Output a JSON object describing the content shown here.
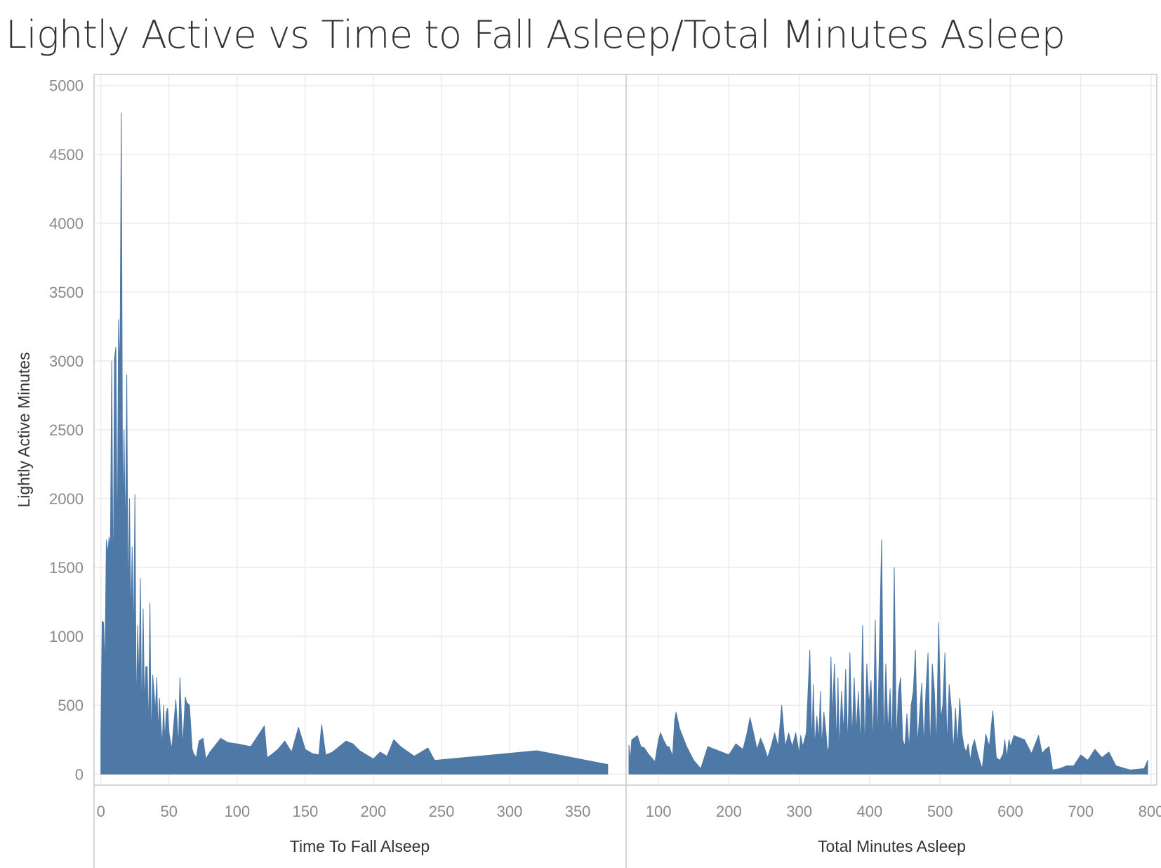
{
  "title": "Lightly Active vs Time to Fall Asleep/Total Minutes Asleep",
  "colors": {
    "area": "#4e79a7",
    "grid": "#ececec",
    "axis": "#c8c8c8",
    "tick_text": "#8a8a8a",
    "title_text": "#333333"
  },
  "chart_data": [
    {
      "type": "area",
      "xlabel": "Time To Fall Alseep",
      "ylabel": "Lightly Active Minutes",
      "xlim": [
        -5,
        385
      ],
      "ylim": [
        -80,
        5080
      ],
      "xticks": [
        0,
        50,
        100,
        150,
        200,
        250,
        300,
        350
      ],
      "yticks": [
        0,
        500,
        1000,
        1500,
        2000,
        2500,
        3000,
        3500,
        4000,
        4500,
        5000
      ],
      "grid": true,
      "x": [
        0,
        1,
        2,
        3,
        4,
        5,
        6,
        7,
        8,
        9,
        10,
        11,
        12,
        13,
        14,
        15,
        16,
        17,
        18,
        19,
        20,
        21,
        22,
        23,
        24,
        25,
        26,
        27,
        28,
        29,
        30,
        31,
        32,
        33,
        34,
        35,
        36,
        37,
        38,
        39,
        40,
        41,
        42,
        43,
        44,
        45,
        46,
        47,
        48,
        49,
        50,
        52,
        55,
        57,
        58,
        60,
        62,
        63,
        65,
        67,
        68,
        70,
        72,
        75,
        77,
        80,
        88,
        93,
        100,
        110,
        120,
        122,
        125,
        130,
        135,
        140,
        145,
        150,
        155,
        160,
        162,
        165,
        170,
        180,
        185,
        190,
        195,
        200,
        205,
        210,
        215,
        220,
        230,
        240,
        245,
        320,
        372
      ],
      "y": [
        270,
        1110,
        1100,
        750,
        1700,
        1600,
        1720,
        1650,
        3000,
        1200,
        3020,
        3100,
        1500,
        3300,
        2900,
        4800,
        1800,
        2500,
        1650,
        2900,
        1200,
        2000,
        1100,
        1650,
        950,
        2030,
        400,
        1080,
        650,
        1420,
        350,
        1200,
        500,
        780,
        780,
        300,
        1240,
        200,
        720,
        600,
        450,
        700,
        300,
        550,
        380,
        200,
        500,
        250,
        450,
        480,
        300,
        180,
        540,
        200,
        700,
        200,
        560,
        520,
        500,
        180,
        150,
        120,
        240,
        260,
        110,
        160,
        260,
        230,
        220,
        200,
        350,
        120,
        140,
        180,
        240,
        160,
        340,
        180,
        150,
        140,
        360,
        140,
        160,
        240,
        220,
        170,
        140,
        110,
        160,
        130,
        250,
        200,
        130,
        190,
        100,
        170,
        70
      ]
    },
    {
      "type": "area",
      "xlabel": "Total Minutes Asleep",
      "ylabel": "Lightly Active Minutes",
      "xlim": [
        55,
        808
      ],
      "ylim": [
        -80,
        5080
      ],
      "xticks": [
        100,
        200,
        300,
        400,
        500,
        600,
        700,
        800
      ],
      "grid": true,
      "x": [
        58,
        60,
        62,
        65,
        70,
        75,
        80,
        85,
        90,
        95,
        100,
        103,
        107,
        112,
        115,
        120,
        123,
        125,
        130,
        140,
        150,
        160,
        170,
        180,
        200,
        210,
        215,
        220,
        225,
        230,
        235,
        240,
        245,
        250,
        255,
        260,
        265,
        270,
        275,
        280,
        285,
        290,
        295,
        300,
        302,
        305,
        310,
        315,
        318,
        320,
        322,
        325,
        328,
        330,
        332,
        335,
        338,
        340,
        342,
        345,
        347,
        350,
        353,
        355,
        357,
        360,
        363,
        366,
        369,
        372,
        375,
        378,
        381,
        384,
        387,
        390,
        393,
        396,
        399,
        402,
        405,
        408,
        411,
        414,
        417,
        420,
        423,
        426,
        429,
        432,
        435,
        438,
        441,
        444,
        447,
        450,
        453,
        456,
        459,
        462,
        465,
        468,
        471,
        474,
        477,
        480,
        483,
        486,
        489,
        492,
        495,
        498,
        501,
        504,
        507,
        510,
        513,
        516,
        519,
        522,
        525,
        528,
        531,
        534,
        537,
        540,
        543,
        546,
        549,
        552,
        555,
        560,
        565,
        570,
        575,
        580,
        585,
        590,
        592,
        595,
        598,
        600,
        605,
        610,
        620,
        625,
        630,
        640,
        645,
        650,
        655,
        660,
        670,
        680,
        690,
        700,
        710,
        720,
        730,
        740,
        750,
        770,
        790,
        795
      ],
      "y": [
        210,
        100,
        250,
        260,
        280,
        200,
        190,
        150,
        120,
        90,
        250,
        300,
        250,
        200,
        200,
        130,
        400,
        450,
        330,
        200,
        100,
        40,
        200,
        180,
        140,
        220,
        200,
        180,
        280,
        410,
        300,
        180,
        260,
        200,
        120,
        200,
        300,
        200,
        500,
        200,
        300,
        200,
        300,
        150,
        280,
        200,
        300,
        900,
        200,
        650,
        200,
        420,
        250,
        600,
        200,
        450,
        300,
        160,
        200,
        850,
        400,
        800,
        200,
        700,
        160,
        600,
        300,
        760,
        200,
        880,
        250,
        700,
        300,
        600,
        200,
        1080,
        160,
        800,
        500,
        680,
        200,
        1120,
        230,
        950,
        1700,
        200,
        800,
        300,
        620,
        200,
        1500,
        230,
        600,
        700,
        250,
        200,
        440,
        180,
        500,
        600,
        900,
        200,
        440,
        660,
        200,
        600,
        880,
        160,
        800,
        600,
        200,
        1100,
        400,
        500,
        880,
        200,
        650,
        480,
        160,
        480,
        200,
        550,
        300,
        200,
        160,
        220,
        100,
        200,
        250,
        180,
        120,
        40,
        290,
        200,
        460,
        120,
        100,
        150,
        250,
        120,
        250,
        200,
        280,
        270,
        250,
        200,
        150,
        280,
        150,
        180,
        200,
        30,
        40,
        60,
        60,
        140,
        100,
        180,
        120,
        160,
        60,
        30,
        40,
        100
      ]
    }
  ]
}
